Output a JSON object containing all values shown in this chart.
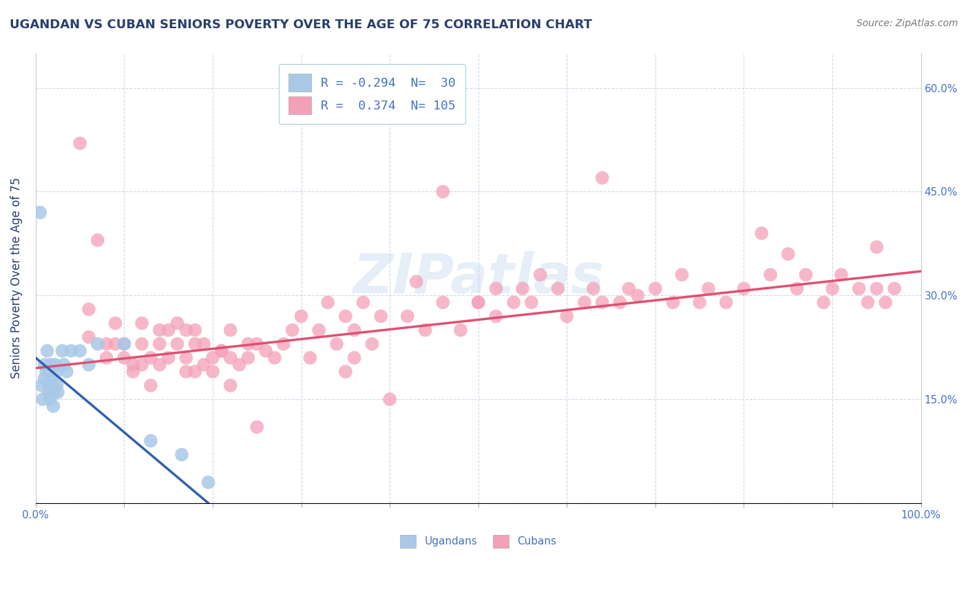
{
  "title": "UGANDAN VS CUBAN SENIORS POVERTY OVER THE AGE OF 75 CORRELATION CHART",
  "source": "Source: ZipAtlas.com",
  "ylabel": "Seniors Poverty Over the Age of 75",
  "xlim": [
    0.0,
    1.0
  ],
  "ylim": [
    0.0,
    0.65
  ],
  "xticks": [
    0.0,
    0.1,
    0.2,
    0.3,
    0.4,
    0.5,
    0.6,
    0.7,
    0.8,
    0.9,
    1.0
  ],
  "xticklabels": [
    "0.0%",
    "",
    "",
    "",
    "",
    "",
    "",
    "",
    "",
    "",
    "100.0%"
  ],
  "yticks": [
    0.0,
    0.15,
    0.3,
    0.45,
    0.6
  ],
  "yticklabels_right": [
    "",
    "15.0%",
    "30.0%",
    "45.0%",
    "60.0%"
  ],
  "ugandan_R": -0.294,
  "ugandan_N": 30,
  "cuban_R": 0.374,
  "cuban_N": 105,
  "ugandan_color": "#a8c8e8",
  "cuban_color": "#f4a0b8",
  "ugandan_line_color": "#3060b0",
  "cuban_line_color": "#e05070",
  "watermark": "ZIPatlas",
  "ugandan_x": [
    0.005,
    0.007,
    0.008,
    0.01,
    0.01,
    0.012,
    0.013,
    0.015,
    0.015,
    0.016,
    0.017,
    0.018,
    0.019,
    0.02,
    0.02,
    0.022,
    0.023,
    0.024,
    0.025,
    0.03,
    0.032,
    0.035,
    0.04,
    0.05,
    0.06,
    0.07,
    0.1,
    0.13,
    0.165,
    0.195
  ],
  "ugandan_y": [
    0.42,
    0.17,
    0.15,
    0.2,
    0.18,
    0.19,
    0.22,
    0.17,
    0.16,
    0.15,
    0.2,
    0.18,
    0.17,
    0.16,
    0.14,
    0.2,
    0.19,
    0.17,
    0.16,
    0.22,
    0.2,
    0.19,
    0.22,
    0.22,
    0.2,
    0.23,
    0.23,
    0.09,
    0.07,
    0.03
  ],
  "cuban_x": [
    0.05,
    0.06,
    0.06,
    0.07,
    0.08,
    0.08,
    0.09,
    0.09,
    0.1,
    0.1,
    0.11,
    0.11,
    0.12,
    0.12,
    0.12,
    0.13,
    0.13,
    0.14,
    0.14,
    0.14,
    0.15,
    0.15,
    0.16,
    0.16,
    0.17,
    0.17,
    0.17,
    0.18,
    0.18,
    0.19,
    0.19,
    0.2,
    0.2,
    0.21,
    0.22,
    0.22,
    0.23,
    0.24,
    0.24,
    0.25,
    0.26,
    0.27,
    0.28,
    0.29,
    0.3,
    0.31,
    0.32,
    0.33,
    0.34,
    0.35,
    0.36,
    0.37,
    0.38,
    0.39,
    0.4,
    0.42,
    0.44,
    0.46,
    0.48,
    0.5,
    0.52,
    0.52,
    0.54,
    0.55,
    0.56,
    0.57,
    0.59,
    0.6,
    0.62,
    0.63,
    0.64,
    0.66,
    0.67,
    0.68,
    0.7,
    0.72,
    0.73,
    0.75,
    0.76,
    0.78,
    0.8,
    0.82,
    0.83,
    0.85,
    0.86,
    0.87,
    0.89,
    0.9,
    0.91,
    0.93,
    0.94,
    0.95,
    0.95,
    0.96,
    0.97,
    0.64,
    0.5,
    0.46,
    0.43,
    0.36,
    0.35,
    0.25,
    0.22,
    0.21,
    0.18
  ],
  "cuban_y": [
    0.52,
    0.28,
    0.24,
    0.38,
    0.21,
    0.23,
    0.26,
    0.23,
    0.21,
    0.23,
    0.19,
    0.2,
    0.2,
    0.23,
    0.26,
    0.17,
    0.21,
    0.2,
    0.23,
    0.25,
    0.25,
    0.21,
    0.23,
    0.26,
    0.19,
    0.21,
    0.25,
    0.25,
    0.23,
    0.2,
    0.23,
    0.21,
    0.19,
    0.22,
    0.25,
    0.21,
    0.2,
    0.21,
    0.23,
    0.23,
    0.22,
    0.21,
    0.23,
    0.25,
    0.27,
    0.21,
    0.25,
    0.29,
    0.23,
    0.27,
    0.25,
    0.29,
    0.23,
    0.27,
    0.15,
    0.27,
    0.25,
    0.29,
    0.25,
    0.29,
    0.31,
    0.27,
    0.29,
    0.31,
    0.29,
    0.33,
    0.31,
    0.27,
    0.29,
    0.31,
    0.29,
    0.29,
    0.31,
    0.3,
    0.31,
    0.29,
    0.33,
    0.29,
    0.31,
    0.29,
    0.31,
    0.39,
    0.33,
    0.36,
    0.31,
    0.33,
    0.29,
    0.31,
    0.33,
    0.31,
    0.29,
    0.31,
    0.37,
    0.29,
    0.31,
    0.47,
    0.29,
    0.45,
    0.32,
    0.21,
    0.19,
    0.11,
    0.17,
    0.22,
    0.19
  ],
  "ugandan_trendline_x": [
    0.0,
    0.195
  ],
  "ugandan_trendline_y": [
    0.21,
    0.0
  ],
  "cuban_trendline_x": [
    0.0,
    1.0
  ],
  "cuban_trendline_y": [
    0.195,
    0.335
  ],
  "background_color": "#ffffff",
  "grid_color": "#c0cfe0",
  "title_color": "#2a3f6f",
  "axis_label_color": "#2a3f6f",
  "tick_label_color": "#4472c4",
  "legend_label_color": "#4472c4"
}
